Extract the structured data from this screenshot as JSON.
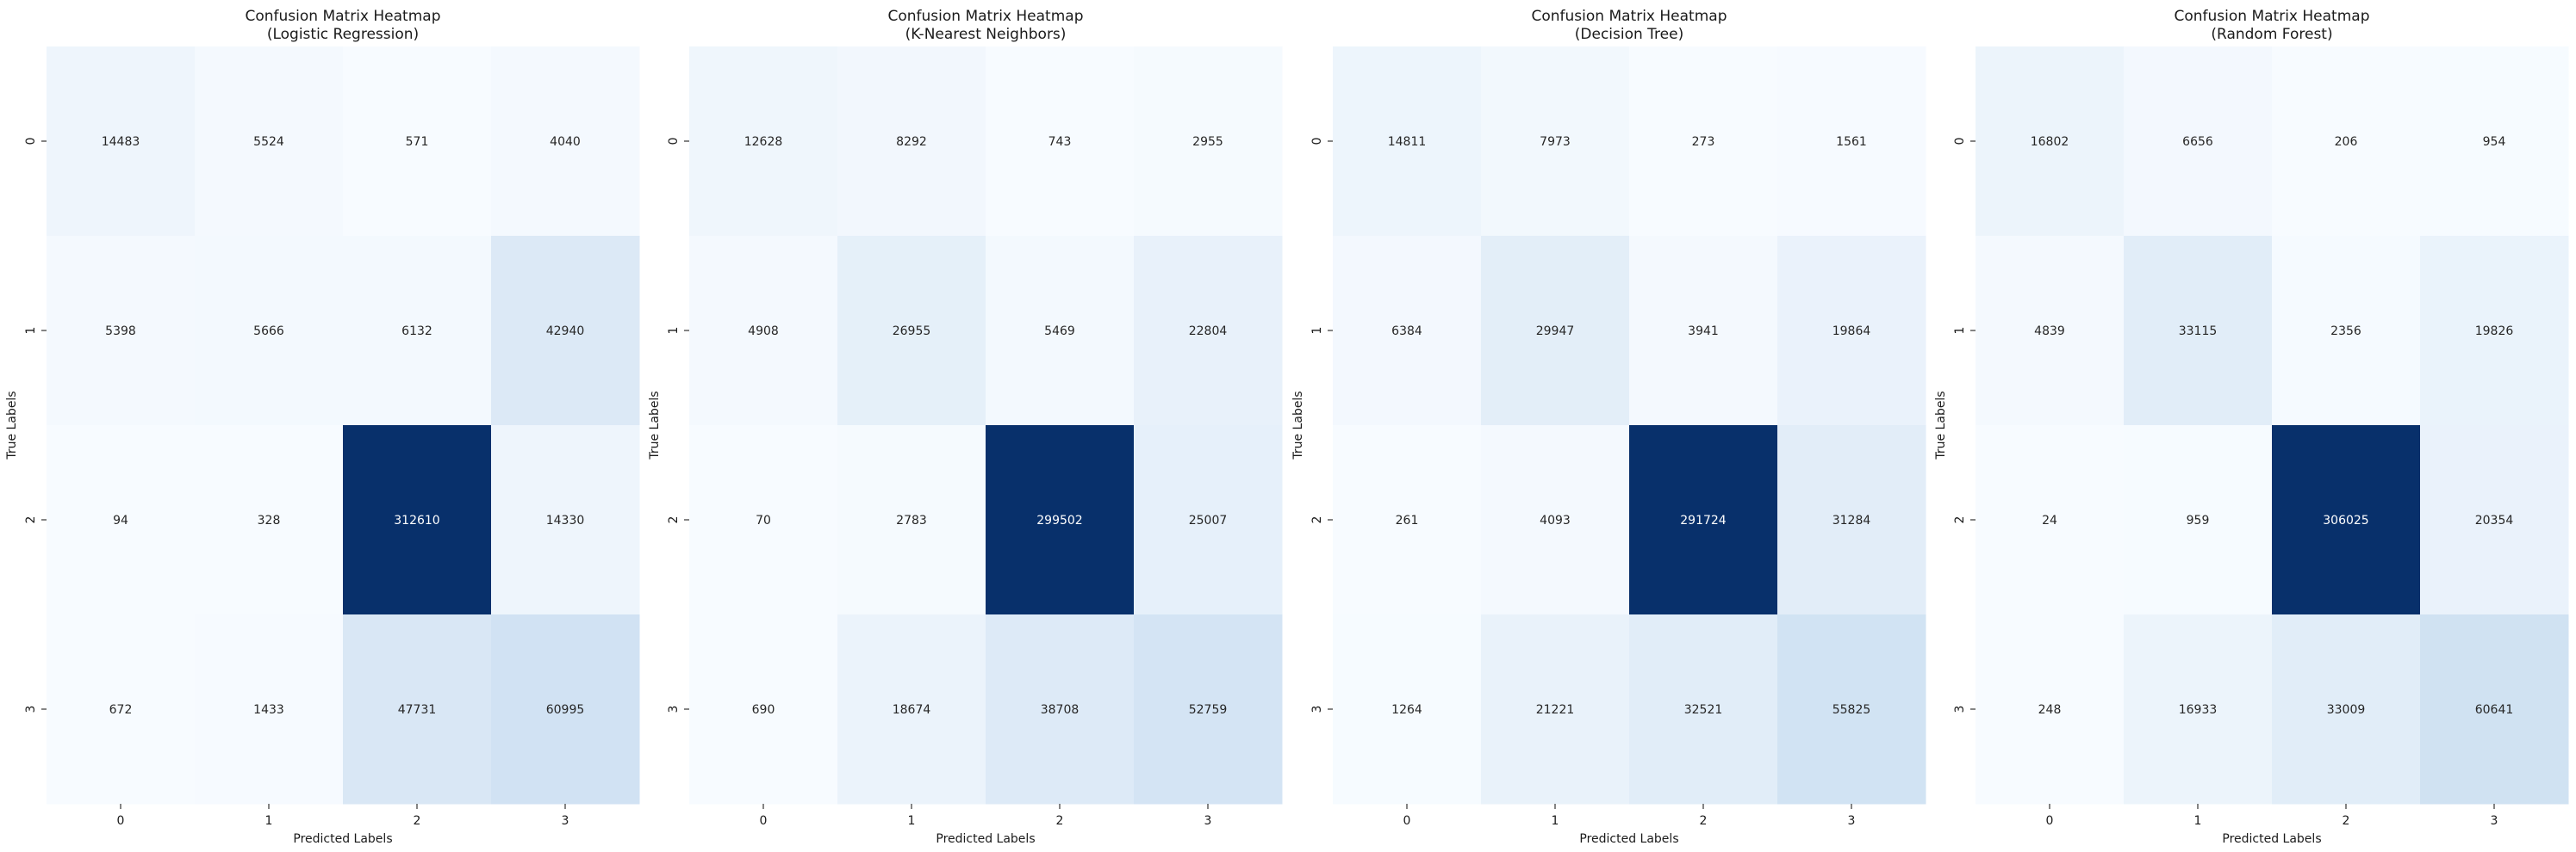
{
  "chart_data": [
    {
      "type": "heatmap",
      "title": "Confusion Matrix Heatmap\n(Logistic Regression)",
      "xlabel": "Predicted Labels",
      "ylabel": "True Labels",
      "x_categories": [
        "0",
        "1",
        "2",
        "3"
      ],
      "y_categories": [
        "0",
        "1",
        "2",
        "3"
      ],
      "colormap": "Blues",
      "values": [
        [
          14483,
          5524,
          571,
          4040
        ],
        [
          5398,
          5666,
          6132,
          42940
        ],
        [
          94,
          328,
          312610,
          14330
        ],
        [
          672,
          1433,
          47731,
          60995
        ]
      ]
    },
    {
      "type": "heatmap",
      "title": "Confusion Matrix Heatmap\n(K-Nearest Neighbors)",
      "xlabel": "Predicted Labels",
      "ylabel": "True Labels",
      "x_categories": [
        "0",
        "1",
        "2",
        "3"
      ],
      "y_categories": [
        "0",
        "1",
        "2",
        "3"
      ],
      "colormap": "Blues",
      "values": [
        [
          12628,
          8292,
          743,
          2955
        ],
        [
          4908,
          26955,
          5469,
          22804
        ],
        [
          70,
          2783,
          299502,
          25007
        ],
        [
          690,
          18674,
          38708,
          52759
        ]
      ]
    },
    {
      "type": "heatmap",
      "title": "Confusion Matrix Heatmap\n(Decision Tree)",
      "xlabel": "Predicted Labels",
      "ylabel": "True Labels",
      "x_categories": [
        "0",
        "1",
        "2",
        "3"
      ],
      "y_categories": [
        "0",
        "1",
        "2",
        "3"
      ],
      "colormap": "Blues",
      "values": [
        [
          14811,
          7973,
          273,
          1561
        ],
        [
          6384,
          29947,
          3941,
          19864
        ],
        [
          261,
          4093,
          291724,
          31284
        ],
        [
          1264,
          21221,
          32521,
          55825
        ]
      ]
    },
    {
      "type": "heatmap",
      "title": "Confusion Matrix Heatmap\n(Random Forest)",
      "xlabel": "Predicted Labels",
      "ylabel": "True Labels",
      "x_categories": [
        "0",
        "1",
        "2",
        "3"
      ],
      "y_categories": [
        "0",
        "1",
        "2",
        "3"
      ],
      "colormap": "Blues",
      "values": [
        [
          16802,
          6656,
          206,
          954
        ],
        [
          4839,
          33115,
          2356,
          19826
        ],
        [
          24,
          959,
          306025,
          20354
        ],
        [
          248,
          16933,
          33009,
          60641
        ]
      ]
    }
  ]
}
